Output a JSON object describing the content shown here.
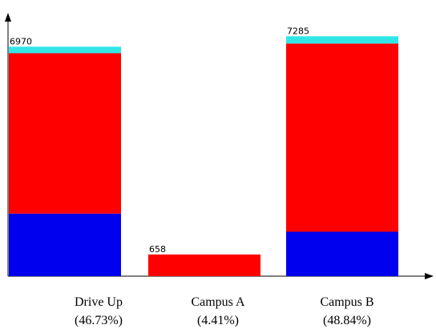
{
  "chart_data": {
    "type": "bar",
    "stacked": true,
    "categories": [
      "Drive Up",
      "Campus A",
      "Campus B"
    ],
    "percent_labels": [
      "(46.73%)",
      "(4.41%)",
      "(48.84%)"
    ],
    "totals": [
      6970,
      658,
      7285
    ],
    "total_labels": [
      "6970",
      "658",
      "7285"
    ],
    "series": [
      {
        "color": "#0000ee",
        "values": [
          1900,
          0,
          1350
        ]
      },
      {
        "color": "#ff0000",
        "values": [
          4870,
          658,
          5715
        ]
      },
      {
        "color": "#33e6e6",
        "values": [
          200,
          0,
          220
        ]
      }
    ],
    "ylim": [
      0,
      7900
    ],
    "grid": false,
    "legend": "none",
    "title": "",
    "xlabel": "",
    "ylabel": ""
  }
}
